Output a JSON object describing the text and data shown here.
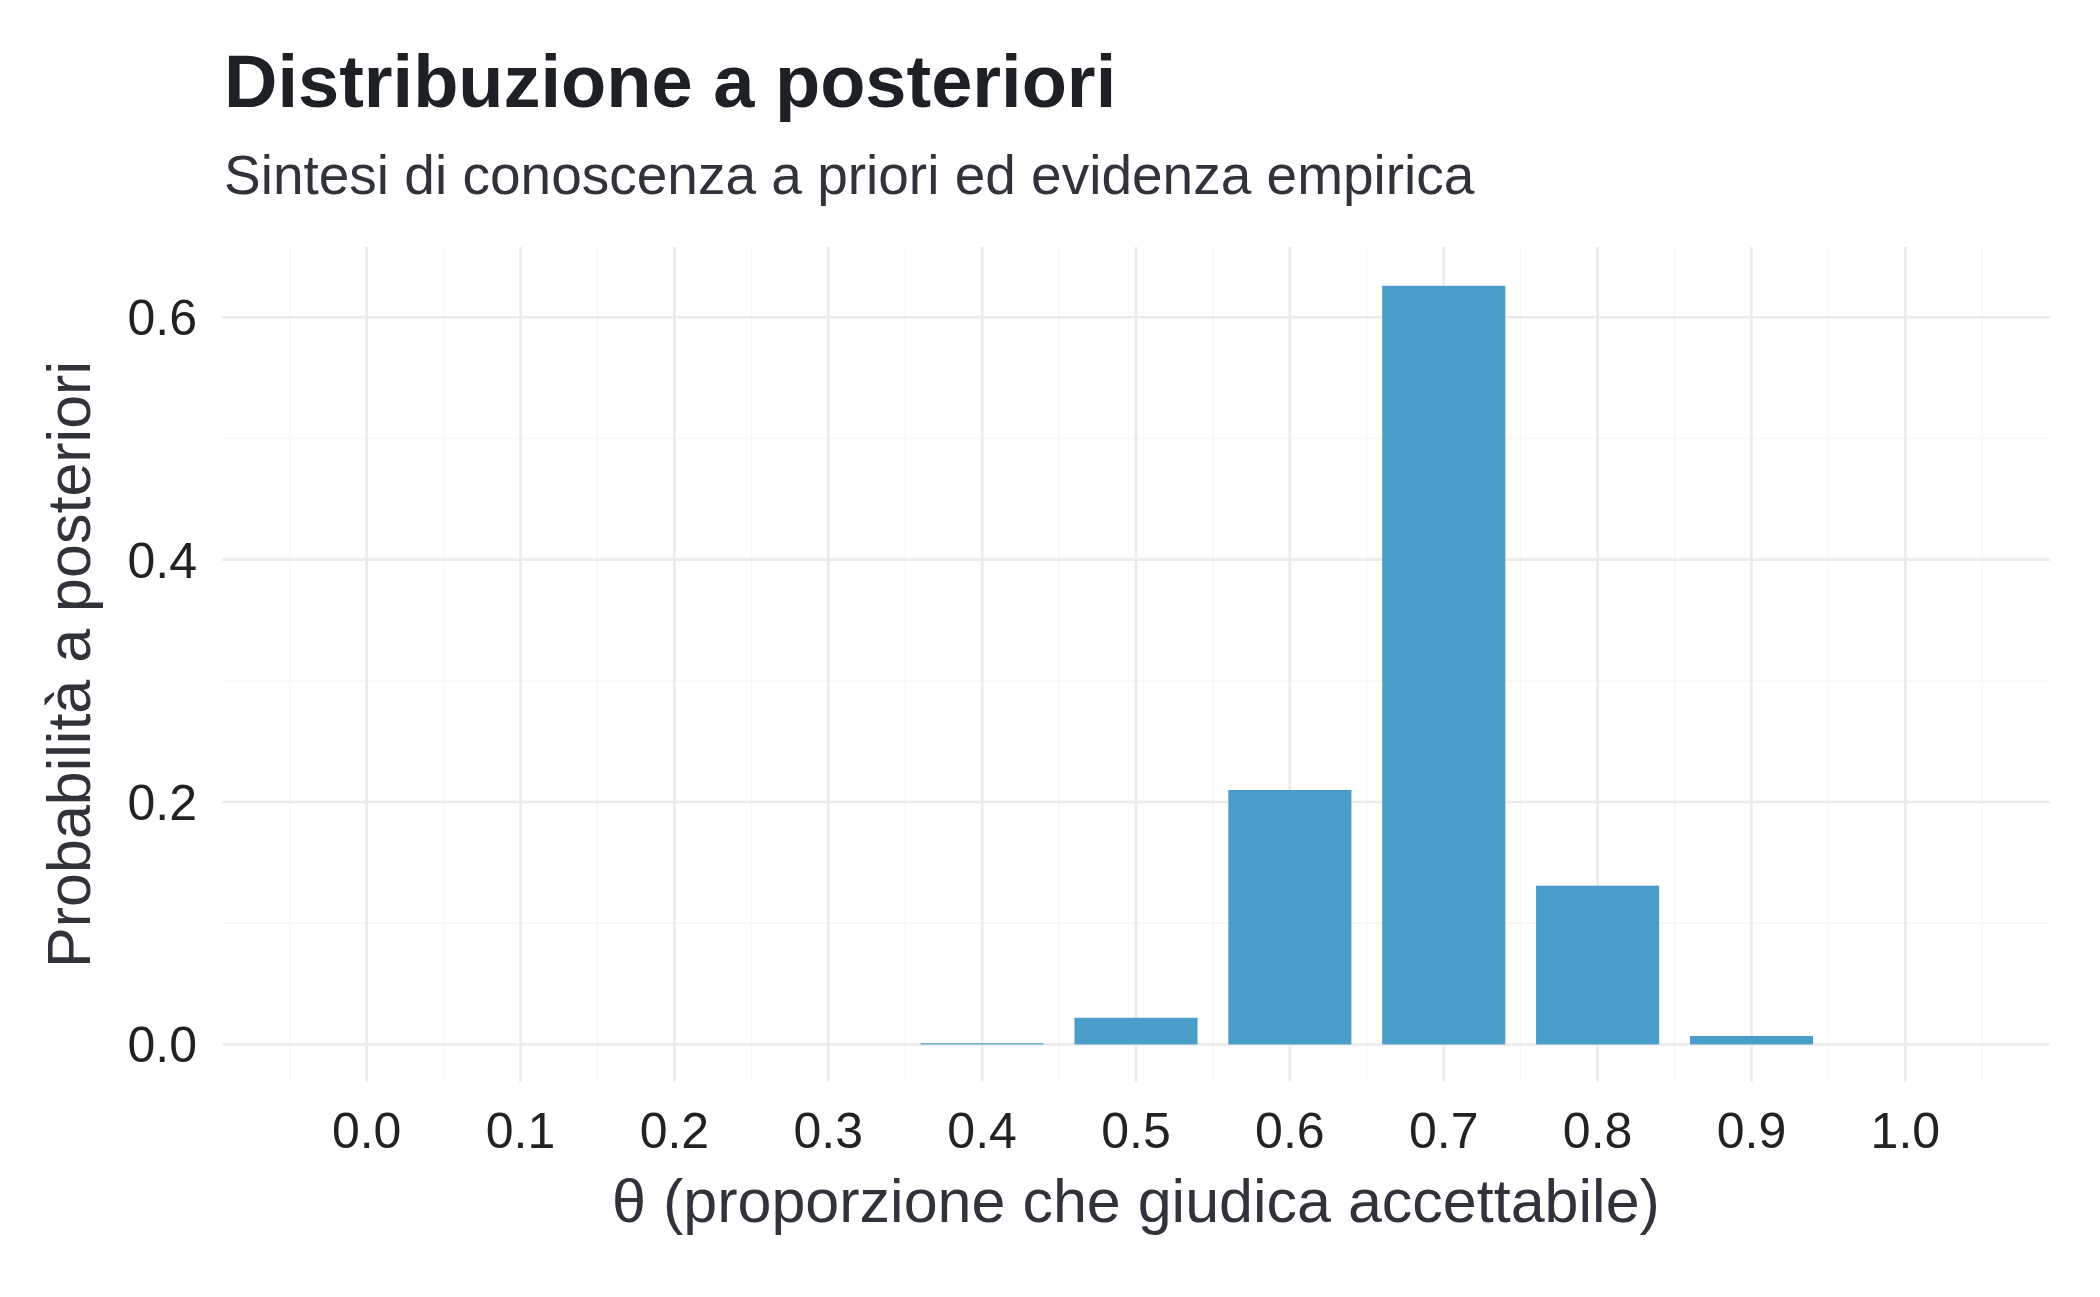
{
  "chart_data": {
    "type": "bar",
    "title": "Distribuzione a posteriori",
    "subtitle": "Sintesi di conoscenza a priori ed evidenza empirica",
    "xlabel": "θ (proporzione che giudica accettabile)",
    "ylabel": "Probabilità a posteriori",
    "x": [
      0,
      0.1,
      0.2,
      0.3,
      0.4,
      0.5,
      0.6,
      0.7,
      0.8,
      0.9,
      1
    ],
    "values": [
      0,
      0,
      0,
      0,
      0.001,
      0.022,
      0.21,
      0.626,
      0.131,
      0.007,
      0
    ],
    "color": "#4a9dc9",
    "xlim": [
      -0.094,
      1.094
    ],
    "xticks": [
      {
        "value": 0,
        "label": "0.0"
      },
      0.1,
      0.2,
      0.3,
      0.4,
      0.5,
      0.6,
      0.7,
      0.8,
      0.9,
      {
        "value": 1,
        "label": "1.0"
      }
    ],
    "ylim": [
      -0.031,
      0.658
    ],
    "yticks": [
      {
        "value": 0,
        "label": "0.0"
      },
      0.2,
      0.4,
      0.6
    ],
    "grid": true
  }
}
